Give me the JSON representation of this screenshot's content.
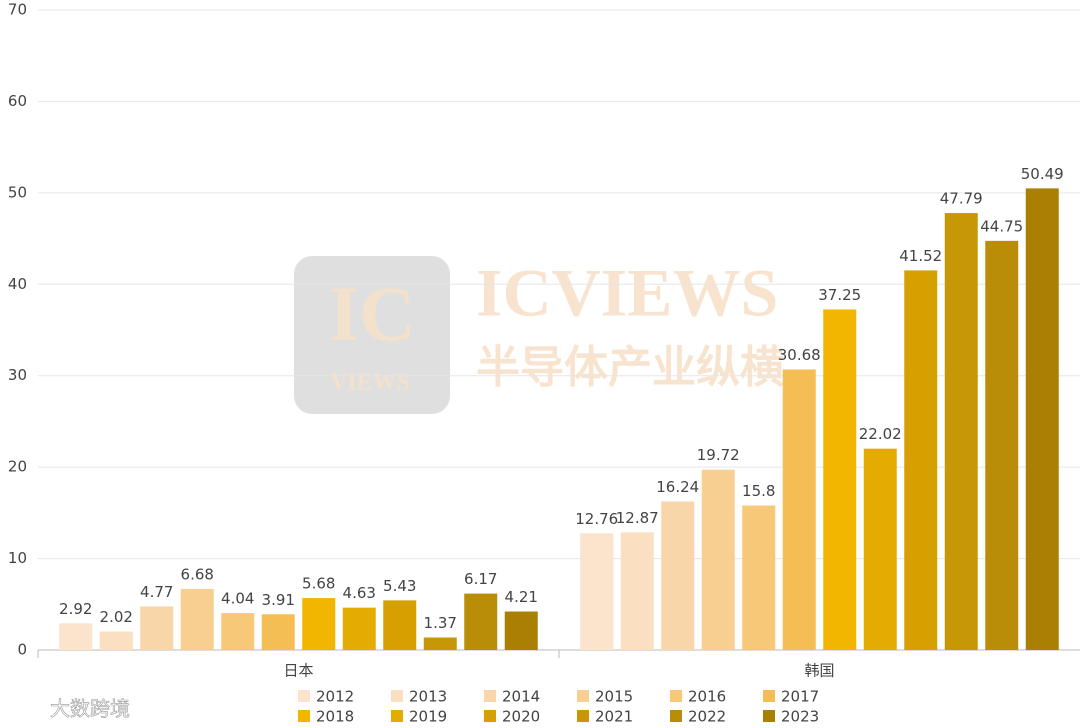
{
  "chart_data": {
    "type": "bar",
    "categories": [
      "日本",
      "韩国"
    ],
    "series": [
      {
        "name": "2012",
        "color": "#fbe4cb",
        "values": [
          2.92,
          12.76
        ]
      },
      {
        "name": "2013",
        "color": "#fadfc0",
        "values": [
          2.02,
          12.87
        ]
      },
      {
        "name": "2014",
        "color": "#f9d6aa",
        "values": [
          4.77,
          16.24
        ]
      },
      {
        "name": "2015",
        "color": "#f8cf90",
        "values": [
          6.68,
          19.72
        ]
      },
      {
        "name": "2016",
        "color": "#f7c878",
        "values": [
          4.04,
          15.8
        ]
      },
      {
        "name": "2017",
        "color": "#f5be55",
        "values": [
          3.91,
          30.68
        ]
      },
      {
        "name": "2018",
        "color": "#f2b500",
        "values": [
          5.68,
          37.25
        ]
      },
      {
        "name": "2019",
        "color": "#e4ab00",
        "values": [
          4.63,
          22.02
        ]
      },
      {
        "name": "2020",
        "color": "#d6a100",
        "values": [
          5.43,
          41.52
        ]
      },
      {
        "name": "2021",
        "color": "#c89706",
        "values": [
          1.37,
          47.79
        ]
      },
      {
        "name": "2022",
        "color": "#b98d08",
        "values": [
          6.17,
          44.75
        ]
      },
      {
        "name": "2023",
        "color": "#a98003",
        "values": [
          4.21,
          50.49
        ]
      }
    ],
    "ylim": [
      0,
      70
    ],
    "yticks": [
      0,
      10,
      20,
      30,
      40,
      50,
      60,
      70
    ],
    "grid": true,
    "legend": "bottom"
  },
  "watermarks": [
    "IC",
    "VIEWS",
    "ICVIEWS",
    "半导体产业纵横",
    "大数跨境"
  ]
}
